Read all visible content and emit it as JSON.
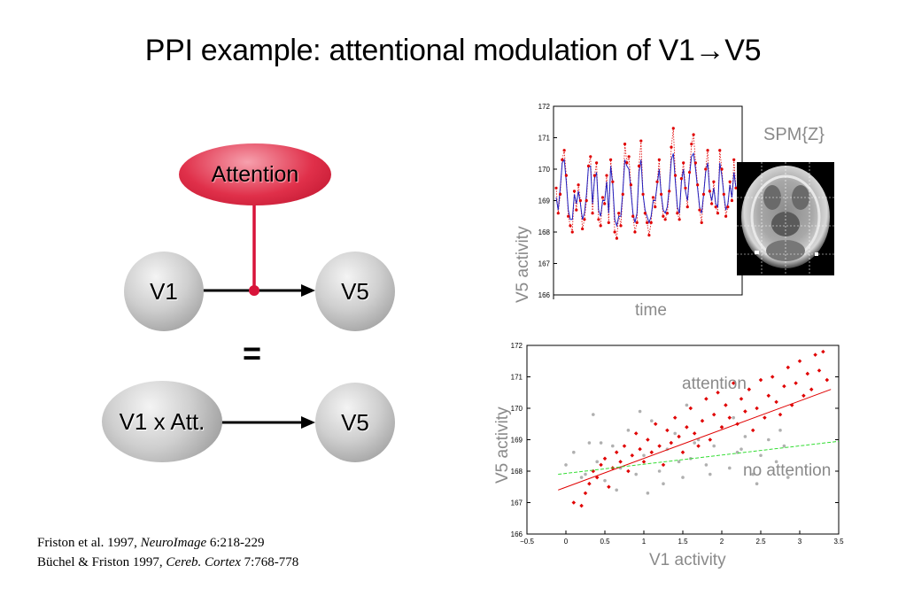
{
  "slide": {
    "title": "PPI example: attentional modulation of V1→V5"
  },
  "diagram": {
    "attention_label": "Attention",
    "v1_label": "V1",
    "v5_label_top": "V5",
    "equals": "=",
    "v1xatt_label": "V1 x Att.",
    "v5_label_bottom": "V5"
  },
  "references": {
    "line1_pre": "Friston et al. 1997, ",
    "line1_journal": "NeuroImage",
    "line1_post": " 6:218-229",
    "line2_pre": "Büchel & Friston 1997, ",
    "line2_journal": "Cereb. Cortex",
    "line2_post": " 7:768-778"
  },
  "spm_label": "SPM{Z}",
  "colors": {
    "accent_red": "#e0304a",
    "attention_series": "#e00000",
    "no_attention_series": "#b0b0b0",
    "fit_line_attention": "#e00000",
    "fit_line_no_attention": "#33dd33",
    "model_line": "#2020c0",
    "axis_label_gray": "#8a8a8a"
  },
  "chart_data": [
    {
      "type": "line",
      "xlabel": "time",
      "ylabel": "V5 activity",
      "ylim": [
        166,
        172
      ],
      "yticks": [
        "166",
        "167",
        "168",
        "169",
        "170",
        "171",
        "172"
      ],
      "series": [
        {
          "values": [
            169.4,
            168.6,
            169.2,
            170.3,
            170.6,
            169.8,
            168.5,
            168.2,
            168.0,
            169.3,
            168.7,
            169.5,
            169.0,
            168.1,
            168.4,
            169.0,
            170.1,
            170.4,
            168.6,
            169.8,
            170.2,
            168.4,
            168.2,
            169.1,
            168.9,
            169.8,
            168.3,
            170.3,
            169.6,
            168.0,
            167.8,
            168.6,
            168.2,
            169.2,
            170.8,
            170.2,
            170.4,
            169.5,
            168.5,
            168.0,
            168.3,
            170.1,
            170.9,
            169.2,
            168.6,
            168.3,
            167.9,
            168.3,
            169.1,
            168.8,
            169.6,
            170.3,
            169.2,
            168.5,
            168.4,
            168.6,
            169.3,
            170.7,
            171.3,
            169.8,
            168.6,
            168.4,
            169.7,
            170.2,
            169.4,
            168.8,
            169.9,
            170.8,
            171.1,
            170.2,
            169.5,
            168.7,
            168.3,
            169.2,
            170.0,
            170.6,
            169.3,
            168.9,
            169.6,
            168.8,
            168.6,
            170.6,
            170.0,
            169.2,
            168.5,
            168.8,
            169.6,
            169.0,
            170.3,
            169.4
          ]
        },
        {
          "values": [
            169.1,
            168.7,
            169.4,
            170.2,
            170.3,
            169.6,
            168.7,
            168.4,
            168.4,
            169.2,
            168.9,
            169.3,
            168.9,
            168.4,
            168.6,
            169.2,
            170.1,
            170.1,
            168.9,
            169.7,
            169.9,
            168.7,
            168.5,
            169.0,
            169.0,
            169.6,
            168.6,
            170.1,
            169.5,
            168.4,
            168.2,
            168.5,
            168.5,
            169.3,
            170.3,
            170.1,
            170.0,
            169.3,
            168.6,
            168.3,
            168.6,
            169.9,
            170.3,
            169.2,
            168.7,
            168.5,
            168.3,
            168.5,
            169.0,
            169.0,
            169.5,
            170.0,
            169.2,
            168.7,
            168.6,
            168.8,
            169.4,
            170.3,
            170.5,
            169.6,
            168.8,
            168.6,
            169.6,
            170.0,
            169.3,
            169.0,
            169.8,
            170.4,
            170.5,
            170.0,
            169.4,
            168.8,
            168.6,
            169.2,
            169.9,
            170.2,
            169.3,
            169.0,
            169.4,
            168.9,
            168.8,
            170.2,
            169.8,
            169.2,
            168.7,
            168.9,
            169.5,
            169.1,
            169.9,
            169.4
          ]
        }
      ]
    },
    {
      "type": "scatter",
      "xlabel": "V1 activity",
      "ylabel": "V5 activity",
      "xlim": [
        -0.5,
        3.5
      ],
      "ylim": [
        166,
        172
      ],
      "xticks": [
        "−0.5",
        "0",
        "0.5",
        "1",
        "1.5",
        "2",
        "2.5",
        "3",
        "3.5"
      ],
      "yticks": [
        "166",
        "167",
        "168",
        "169",
        "170",
        "171",
        "172"
      ],
      "annotations": [
        "attention",
        "no attention"
      ],
      "fit_lines": [
        {
          "series": "attention",
          "x": [
            -0.1,
            3.4
          ],
          "y": [
            167.4,
            170.6
          ]
        },
        {
          "series": "no attention",
          "x": [
            -0.1,
            3.5
          ],
          "y": [
            167.9,
            168.95
          ]
        }
      ],
      "series": [
        {
          "name": "attention",
          "points": [
            [
              0.1,
              167.0
            ],
            [
              0.2,
              166.9
            ],
            [
              0.25,
              167.3
            ],
            [
              0.3,
              167.6
            ],
            [
              0.35,
              168.0
            ],
            [
              0.4,
              167.8
            ],
            [
              0.45,
              168.2
            ],
            [
              0.5,
              168.4
            ],
            [
              0.55,
              167.5
            ],
            [
              0.6,
              168.1
            ],
            [
              0.65,
              168.6
            ],
            [
              0.7,
              168.3
            ],
            [
              0.75,
              168.8
            ],
            [
              0.8,
              168.0
            ],
            [
              0.85,
              168.5
            ],
            [
              0.9,
              169.2
            ],
            [
              0.95,
              168.7
            ],
            [
              1.0,
              168.3
            ],
            [
              1.05,
              169.0
            ],
            [
              1.1,
              168.6
            ],
            [
              1.15,
              169.5
            ],
            [
              1.2,
              168.8
            ],
            [
              1.25,
              168.2
            ],
            [
              1.3,
              169.3
            ],
            [
              1.35,
              168.9
            ],
            [
              1.4,
              169.7
            ],
            [
              1.45,
              169.1
            ],
            [
              1.5,
              168.6
            ],
            [
              1.55,
              169.4
            ],
            [
              1.6,
              170.0
            ],
            [
              1.65,
              169.2
            ],
            [
              1.7,
              168.8
            ],
            [
              1.75,
              169.6
            ],
            [
              1.8,
              170.3
            ],
            [
              1.85,
              169.0
            ],
            [
              1.9,
              169.8
            ],
            [
              1.95,
              170.5
            ],
            [
              2.0,
              169.4
            ],
            [
              2.05,
              170.1
            ],
            [
              2.1,
              169.7
            ],
            [
              2.15,
              170.8
            ],
            [
              2.2,
              169.5
            ],
            [
              2.25,
              170.3
            ],
            [
              2.3,
              169.9
            ],
            [
              2.35,
              170.6
            ],
            [
              2.4,
              169.3
            ],
            [
              2.45,
              170.0
            ],
            [
              2.5,
              170.9
            ],
            [
              2.55,
              169.7
            ],
            [
              2.6,
              170.4
            ],
            [
              2.65,
              171.0
            ],
            [
              2.7,
              170.2
            ],
            [
              2.75,
              169.8
            ],
            [
              2.8,
              170.7
            ],
            [
              2.85,
              171.3
            ],
            [
              2.9,
              170.1
            ],
            [
              2.95,
              170.8
            ],
            [
              3.0,
              171.5
            ],
            [
              3.05,
              170.4
            ],
            [
              3.1,
              171.1
            ],
            [
              3.15,
              170.6
            ],
            [
              3.2,
              171.7
            ],
            [
              3.25,
              171.2
            ],
            [
              3.3,
              171.8
            ],
            [
              3.35,
              170.9
            ]
          ]
        },
        {
          "name": "no attention",
          "points": [
            [
              0.0,
              168.2
            ],
            [
              0.1,
              168.6
            ],
            [
              0.2,
              167.8
            ],
            [
              0.3,
              168.9
            ],
            [
              0.4,
              168.3
            ],
            [
              0.5,
              167.7
            ],
            [
              0.6,
              168.8
            ],
            [
              0.7,
              168.1
            ],
            [
              0.8,
              169.3
            ],
            [
              0.9,
              167.9
            ],
            [
              1.0,
              168.5
            ],
            [
              1.1,
              169.6
            ],
            [
              1.2,
              168.0
            ],
            [
              1.3,
              168.7
            ],
            [
              1.4,
              169.2
            ],
            [
              1.5,
              167.8
            ],
            [
              1.6,
              168.4
            ],
            [
              1.7,
              169.0
            ],
            [
              1.8,
              168.2
            ],
            [
              1.9,
              168.8
            ],
            [
              2.0,
              169.4
            ],
            [
              2.1,
              168.1
            ],
            [
              2.2,
              168.6
            ],
            [
              2.3,
              169.1
            ],
            [
              2.4,
              167.9
            ],
            [
              2.5,
              168.5
            ],
            [
              2.6,
              169.0
            ],
            [
              2.7,
              168.3
            ],
            [
              2.8,
              168.8
            ],
            [
              0.35,
              169.8
            ],
            [
              0.65,
              167.4
            ],
            [
              0.95,
              169.9
            ],
            [
              1.25,
              167.6
            ],
            [
              1.55,
              170.1
            ],
            [
              1.85,
              167.9
            ],
            [
              2.15,
              169.7
            ],
            [
              2.45,
              167.6
            ],
            [
              2.75,
              169.3
            ],
            [
              0.45,
              168.9
            ],
            [
              1.05,
              167.3
            ],
            [
              1.65,
              168.9
            ],
            [
              2.25,
              168.7
            ],
            [
              2.85,
              167.8
            ],
            [
              0.25,
              167.9
            ],
            [
              1.45,
              168.3
            ]
          ]
        }
      ]
    }
  ]
}
